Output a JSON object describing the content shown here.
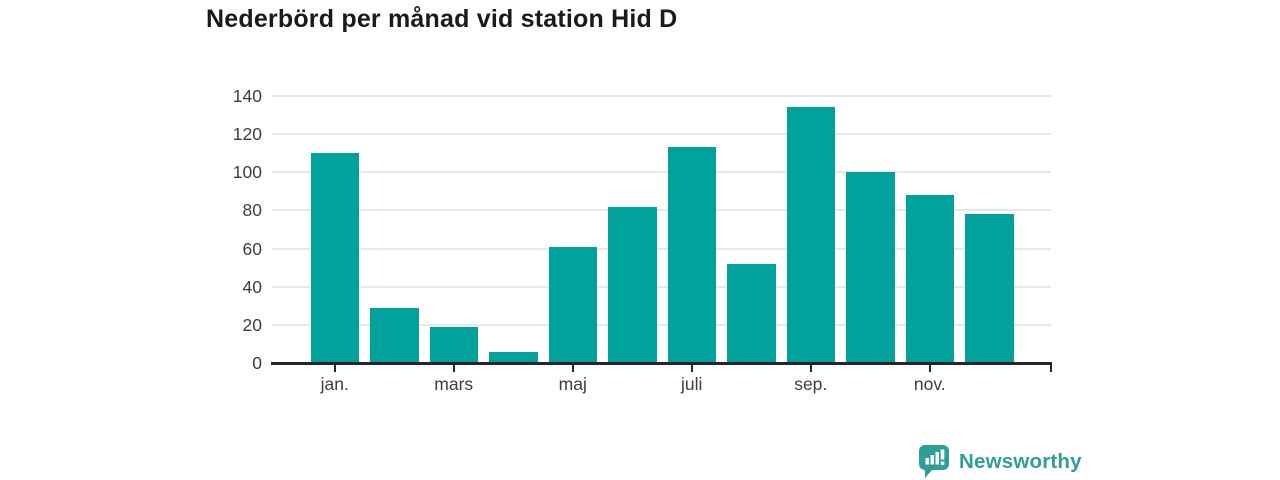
{
  "chart_data": {
    "type": "bar",
    "title": "Nederbörd per månad vid station Hid D",
    "values": [
      110,
      29,
      19,
      6,
      61,
      82,
      113,
      52,
      134,
      100,
      88,
      78
    ],
    "x_tick_labels": [
      "jan.",
      "mars",
      "maj",
      "juli",
      "sep.",
      "nov."
    ],
    "x_tick_bar_indexes": [
      0,
      2,
      4,
      6,
      8,
      10
    ],
    "y_ticks": [
      0,
      20,
      40,
      60,
      80,
      100,
      120,
      140
    ],
    "ylim": [
      0,
      140
    ],
    "grid": true,
    "legend": "none",
    "bar_color": "#00a29b"
  },
  "footer": {
    "logo_text": "Newsworthy",
    "logo_color": "#2f9e98"
  }
}
